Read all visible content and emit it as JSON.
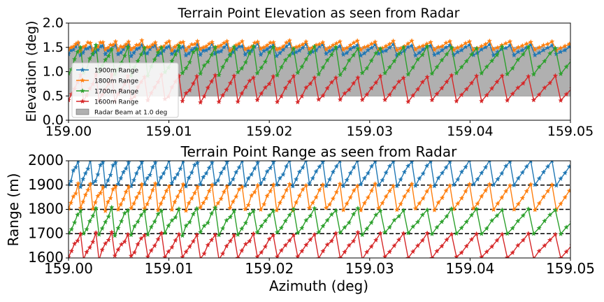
{
  "chart_data": [
    {
      "type": "line",
      "title": "Terrain Point Elevation as seen from Radar",
      "xlabel": "",
      "ylabel": "Elevation (deg)",
      "xlim": [
        159.0,
        159.05
      ],
      "ylim": [
        0.0,
        2.0
      ],
      "x_ticks": [
        "159.00",
        "159.01",
        "159.02",
        "159.03",
        "159.04",
        "159.05"
      ],
      "y_ticks": [
        "0.0",
        "0.5",
        "1.0",
        "1.5",
        "2.0"
      ],
      "band": {
        "name": "Radar Beam at 1.0 deg",
        "y_low": 0.5,
        "y_high": 1.5,
        "color": "#b0b0b0"
      },
      "legend_position": "lower-left",
      "series": [
        {
          "name": "1900m Range",
          "color": "#1f77b4",
          "marker": "star",
          "pattern": {
            "kind": "sawtooth",
            "y_low": 1.35,
            "y_high": 1.55,
            "x_start": 159.0,
            "period_start": 0.0012,
            "period_end": 0.0022,
            "points_per_cycle": 5,
            "jitter": 0.04
          }
        },
        {
          "name": "1800m Range",
          "color": "#ff7f0e",
          "marker": "star",
          "pattern": {
            "kind": "sawtooth",
            "y_low": 1.45,
            "y_high": 1.62,
            "x_start": 159.0,
            "period_start": 0.0012,
            "period_end": 0.0022,
            "points_per_cycle": 5,
            "jitter": 0.03
          }
        },
        {
          "name": "1700m Range",
          "color": "#2ca02c",
          "marker": "star",
          "pattern": {
            "kind": "sawtooth",
            "y_low": 0.95,
            "y_high": 1.5,
            "x_start": 159.0,
            "period_start": 0.0015,
            "period_end": 0.0028,
            "points_per_cycle": 5,
            "jitter": 0.05
          }
        },
        {
          "name": "1600m Range",
          "color": "#d62728",
          "marker": "star",
          "pattern": {
            "kind": "sawtooth",
            "y_low": 0.4,
            "y_high": 0.9,
            "x_start": 159.0,
            "period_start": 0.0015,
            "period_end": 0.0028,
            "points_per_cycle": 5,
            "jitter": 0.05
          }
        }
      ]
    },
    {
      "type": "line",
      "title": "Terrain Point Range as seen from Radar",
      "xlabel": "Azimuth (deg)",
      "ylabel": "Range (m)",
      "xlim": [
        159.0,
        159.05
      ],
      "ylim": [
        1600,
        2000
      ],
      "x_ticks": [
        "159.00",
        "159.01",
        "159.02",
        "159.03",
        "159.04",
        "159.05"
      ],
      "y_ticks": [
        "1600",
        "1700",
        "1800",
        "1900",
        "2000"
      ],
      "reference_lines": [
        1700,
        1800,
        1900
      ],
      "series": [
        {
          "name": "1900m Range",
          "color": "#1f77b4",
          "marker": "star",
          "pattern": {
            "kind": "sawtooth",
            "y_low": 1900,
            "y_high": 2000,
            "x_start": 159.0,
            "period_start": 0.0012,
            "period_end": 0.0022,
            "points_per_cycle": 5,
            "jitter": 10
          }
        },
        {
          "name": "1800m Range",
          "color": "#ff7f0e",
          "marker": "star",
          "pattern": {
            "kind": "sawtooth",
            "y_low": 1800,
            "y_high": 1900,
            "x_start": 159.0,
            "period_start": 0.0012,
            "period_end": 0.0022,
            "points_per_cycle": 5,
            "jitter": 10
          }
        },
        {
          "name": "1700m Range",
          "color": "#2ca02c",
          "marker": "star",
          "pattern": {
            "kind": "sawtooth",
            "y_low": 1700,
            "y_high": 1800,
            "x_start": 159.0,
            "period_start": 0.0015,
            "period_end": 0.0028,
            "points_per_cycle": 5,
            "jitter": 10
          }
        },
        {
          "name": "1600m Range",
          "color": "#d62728",
          "marker": "star",
          "pattern": {
            "kind": "sawtooth",
            "y_low": 1600,
            "y_high": 1700,
            "x_start": 159.0,
            "period_start": 0.0015,
            "period_end": 0.0028,
            "points_per_cycle": 5,
            "jitter": 10
          }
        }
      ]
    }
  ]
}
